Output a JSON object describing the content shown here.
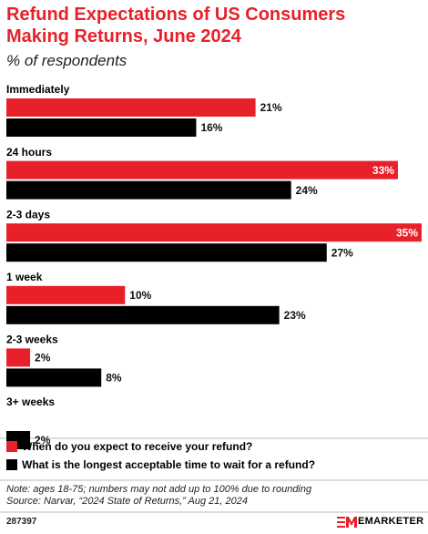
{
  "chart_data": {
    "type": "hbar",
    "title": "Refund Expectations of US Consumers Making Returns, June 2024",
    "subtitle": "% of respondents",
    "categories": [
      "Immediately",
      "24 hours",
      "2-3 days",
      "1 week",
      "2-3 weeks",
      "3+ weeks"
    ],
    "series": [
      {
        "name": "When do you expect to receive your refund?",
        "color": "#e8202a",
        "values": [
          21,
          33,
          35,
          10,
          2,
          null
        ],
        "value_labels": [
          "21%",
          "33%",
          "35%",
          "10%",
          "2%",
          null
        ]
      },
      {
        "name": "What is the longest acceptable time to wait for a refund?",
        "color": "#000000",
        "values": [
          16,
          24,
          27,
          23,
          8,
          2
        ],
        "value_labels": [
          "16%",
          "24%",
          "27%",
          "23%",
          "8%",
          "2%"
        ]
      }
    ],
    "xlim": [
      0,
      35
    ],
    "note": "Note: ages 18-75; numbers may not add up to 100% due to rounding",
    "source": "Source: Narvar, “2024 State of Returns,” Aug 21, 2024",
    "chart_id": "287397",
    "brand": "EMARKETER"
  }
}
